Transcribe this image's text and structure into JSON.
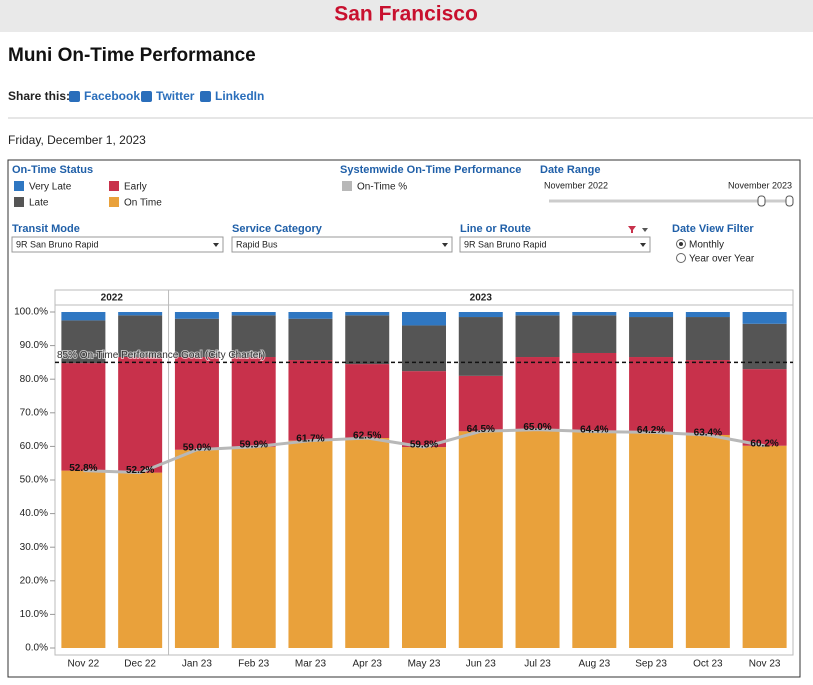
{
  "page": {
    "site": "San Francisco",
    "title": "Muni On-Time Performance",
    "share_label": "Share this:",
    "share_links": [
      "Facebook",
      "Twitter",
      "LinkedIn"
    ],
    "date": "Friday, December 1, 2023"
  },
  "filters": {
    "legend_title": "On-Time Status",
    "systemwide_title": "Systemwide On-Time Performance",
    "date_range_title": "Date Range",
    "date_range_start": "November 2022",
    "date_range_end": "November 2023",
    "transit_mode_title": "Transit Mode",
    "transit_mode_value": "9R San Bruno Rapid",
    "service_category_title": "Service Category",
    "service_category_value": "Rapid Bus",
    "route_title": "Line or Route",
    "route_value": "9R San Bruno Rapid",
    "date_view_title": "Date View Filter",
    "date_view_options": [
      "Monthly",
      "Year over Year"
    ]
  },
  "chart_data": {
    "type": "stacked_bar",
    "categories": [
      "Nov 22",
      "Dec 22",
      "Jan 23",
      "Feb 23",
      "Mar 23",
      "Apr 23",
      "May 23",
      "Jun 23",
      "Jul 23",
      "Aug 23",
      "Sep 23",
      "Oct 23",
      "Nov 23"
    ],
    "year_groups": [
      {
        "label": "2022",
        "span": 2
      },
      {
        "label": "2023",
        "span": 11
      }
    ],
    "series": [
      {
        "name": "On Time",
        "color": "#e9a13b",
        "values": [
          52.8,
          52.2,
          59.0,
          59.9,
          61.7,
          62.5,
          59.8,
          64.5,
          65.0,
          64.4,
          64.2,
          63.4,
          60.2
        ]
      },
      {
        "name": "Early",
        "color": "#c8314b",
        "values": [
          32,
          34.4,
          27.6,
          26.7,
          24,
          22,
          22.6,
          16.5,
          21.6,
          23.4,
          22.4,
          22.3,
          22.8
        ]
      },
      {
        "name": "Late",
        "color": "#555555",
        "values": [
          12.7,
          12.4,
          11.4,
          12.4,
          12.3,
          14.5,
          13.6,
          17.5,
          12.4,
          11.2,
          11.9,
          12.8,
          13.5
        ]
      },
      {
        "name": "Very Late",
        "color": "#2f77c2",
        "values": [
          2.5,
          1,
          2,
          1,
          2,
          1,
          4,
          1.5,
          1,
          1,
          1.5,
          1.5,
          3.5
        ]
      },
      {
        "name": "On-Time %",
        "color": "#b8b8b8",
        "type": "line",
        "values": [
          52.8,
          52.2,
          59.0,
          59.9,
          61.7,
          62.5,
          59.8,
          64.5,
          65.0,
          64.4,
          64.2,
          63.4,
          60.2
        ],
        "value_labels": [
          "52.8%",
          "52.2%",
          "59.0%",
          "59.9%",
          "61.7%",
          "62.5%",
          "59.8%",
          "64.5%",
          "65.0%",
          "64.4%",
          "64.2%",
          "63.4%",
          "60.2%"
        ]
      }
    ],
    "goal": {
      "value": 85,
      "label": "85% On-Time Performance Goal (City Charter)"
    },
    "ylim": [
      0,
      100
    ],
    "yticks": [
      {
        "value": 0,
        "label": "0.0%"
      },
      {
        "value": 10,
        "label": "10.0%"
      },
      {
        "value": 20,
        "label": "20.0%"
      },
      {
        "value": 30,
        "label": "30.0%"
      },
      {
        "value": 40,
        "label": "40.0%"
      },
      {
        "value": 50,
        "label": "50.0%"
      },
      {
        "value": 60,
        "label": "60.0%"
      },
      {
        "value": 70,
        "label": "70.0%"
      },
      {
        "value": 80,
        "label": "80.0%"
      },
      {
        "value": 90,
        "label": "90.0%"
      },
      {
        "value": 100,
        "label": "100.0%"
      }
    ]
  }
}
